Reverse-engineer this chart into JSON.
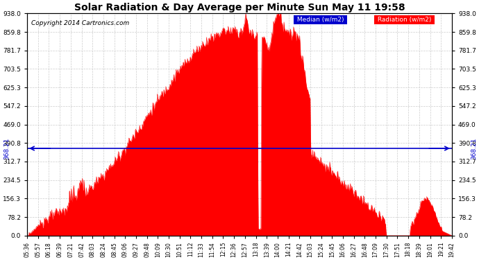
{
  "title": "Solar Radiation & Day Average per Minute Sun May 11 19:58",
  "copyright": "Copyright 2014 Cartronics.com",
  "median_value": 368.21,
  "y_max": 938.0,
  "y_min": 0.0,
  "y_ticks": [
    0.0,
    78.2,
    156.3,
    234.5,
    312.7,
    390.8,
    469.0,
    547.2,
    625.3,
    703.5,
    781.7,
    859.8,
    938.0
  ],
  "background_color": "#ffffff",
  "radiation_color": "#ff0000",
  "median_color": "#0000cc",
  "grid_color": "#cccccc",
  "title_color": "#000000",
  "x_tick_labels": [
    "05:36",
    "05:57",
    "06:18",
    "06:39",
    "07:21",
    "07:42",
    "08:03",
    "08:24",
    "08:45",
    "09:06",
    "09:27",
    "09:48",
    "10:09",
    "10:30",
    "10:51",
    "11:12",
    "11:33",
    "11:54",
    "12:15",
    "12:36",
    "12:57",
    "13:18",
    "13:39",
    "14:00",
    "14:21",
    "14:42",
    "15:03",
    "15:24",
    "15:45",
    "16:06",
    "16:27",
    "16:48",
    "17:09",
    "17:30",
    "17:51",
    "18:18",
    "18:39",
    "19:01",
    "19:21",
    "19:42"
  ]
}
